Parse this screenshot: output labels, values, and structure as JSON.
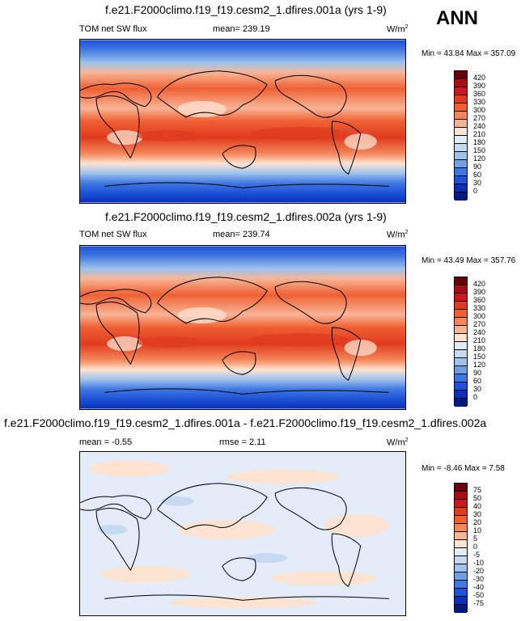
{
  "season": "ANN",
  "panels": [
    {
      "title": "f.e21.F2000climo.f19_f19.cesm2_1.dfires.001a (yrs 1-9)",
      "left_label": "TOM net SW flux",
      "mid_label": "mean= 239.19",
      "units": "W/m",
      "units_sup": "2",
      "minmax": "Min =  43.84 Max = 357.09",
      "mean_value": 239.19,
      "min_value": 43.84,
      "max_value": 357.09,
      "colorbar": {
        "labels": [
          "420",
          "390",
          "360",
          "330",
          "300",
          "270",
          "240",
          "210",
          "180",
          "150",
          "120",
          "90",
          "60",
          "30",
          "0"
        ],
        "colors": [
          "#67000d",
          "#a50f15",
          "#cb181d",
          "#e03b1f",
          "#ef6033",
          "#f4885a",
          "#f9b596",
          "#fde3d2",
          "#e3ecf8",
          "#c7daf2",
          "#9ec3ec",
          "#6f9fe4",
          "#3f78e0",
          "#1d52d9",
          "#0a30b8",
          "#021a7e"
        ]
      }
    },
    {
      "title": "f.e21.F2000climo.f19_f19.cesm2_1.dfires.002a (yrs 1-9)",
      "left_label": "TOM net SW flux",
      "mid_label": "mean= 239.74",
      "units": "W/m",
      "units_sup": "2",
      "minmax": "Min =  43.49 Max = 357.76",
      "mean_value": 239.74,
      "min_value": 43.49,
      "max_value": 357.76,
      "colorbar": {
        "labels": [
          "420",
          "390",
          "360",
          "330",
          "300",
          "270",
          "240",
          "210",
          "180",
          "150",
          "120",
          "90",
          "60",
          "30",
          "0"
        ],
        "colors": [
          "#67000d",
          "#a50f15",
          "#cb181d",
          "#e03b1f",
          "#ef6033",
          "#f4885a",
          "#f9b596",
          "#fde3d2",
          "#e3ecf8",
          "#c7daf2",
          "#9ec3ec",
          "#6f9fe4",
          "#3f78e0",
          "#1d52d9",
          "#0a30b8",
          "#021a7e"
        ]
      }
    },
    {
      "title": "f.e21.F2000climo.f19_f19.cesm2_1.dfires.001a - f.e21.F2000climo.f19_f19.cesm2_1.dfires.002a",
      "left_label": "mean =  -0.55",
      "mid_label": "rmse =   2.11",
      "units": "W/m",
      "units_sup": "2",
      "minmax": "Min =  -8.46 Max =   7.58",
      "mean_value": -0.55,
      "rmse_value": 2.11,
      "min_value": -8.46,
      "max_value": 7.58,
      "colorbar": {
        "labels": [
          "75",
          "50",
          "40",
          "30",
          "20",
          "10",
          "5",
          "0",
          "-5",
          "-10",
          "-20",
          "-30",
          "-40",
          "-50",
          "-75"
        ],
        "colors": [
          "#67000d",
          "#a50f15",
          "#cb181d",
          "#e03b1f",
          "#ef6033",
          "#f4885a",
          "#f9b596",
          "#fde3d2",
          "#e3ecf8",
          "#c7daf2",
          "#9ec3ec",
          "#6f9fe4",
          "#3f78e0",
          "#1d52d9",
          "#0a30b8",
          "#021a7e"
        ]
      }
    }
  ]
}
